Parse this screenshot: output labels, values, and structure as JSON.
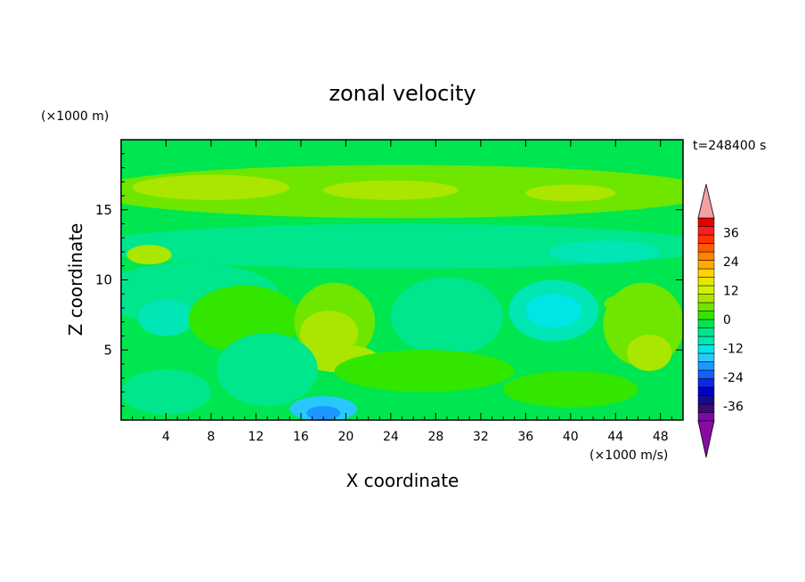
{
  "chart_data": {
    "type": "heatmap",
    "title": "zonal velocity",
    "xlabel": "X coordinate",
    "ylabel": "Z coordinate",
    "x_unit": "(×1000 m/s)",
    "y_unit": "(×1000 m)",
    "time_label": "t=248400 s",
    "xlim": [
      0,
      50
    ],
    "ylim": [
      0,
      20
    ],
    "x_ticks": [
      4,
      8,
      12,
      16,
      20,
      24,
      28,
      32,
      36,
      40,
      44,
      48
    ],
    "y_ticks": [
      5,
      10,
      15
    ],
    "colorbar": {
      "levels": [
        -42,
        -39,
        -36,
        -33,
        -30,
        -27,
        -24,
        -21,
        -18,
        -15,
        -12,
        -9,
        -6,
        -3,
        0,
        3,
        6,
        9,
        12,
        15,
        18,
        21,
        24,
        27,
        30,
        33,
        36,
        39,
        42
      ],
      "tick_labels": [
        "36",
        "24",
        "12",
        "0",
        "-12",
        "-24",
        "-36"
      ],
      "tick_values": [
        36,
        24,
        12,
        0,
        -12,
        -24,
        -36
      ],
      "colors": [
        "#7a0aa8",
        "#3a0a78",
        "#1a0a8c",
        "#0000c8",
        "#0a28e6",
        "#1460ff",
        "#1e96ff",
        "#28c8ff",
        "#00e6e6",
        "#00e6b4",
        "#00e68c",
        "#00e650",
        "#32e600",
        "#6ee600",
        "#aae600",
        "#d2f000",
        "#e6e600",
        "#ffd200",
        "#ffaa00",
        "#ff8200",
        "#ff5a00",
        "#ff3200",
        "#ff1e1e",
        "#e60000"
      ],
      "over_color": "#f4a0a0",
      "under_color": "#8b0aa0"
    },
    "grid": false
  }
}
